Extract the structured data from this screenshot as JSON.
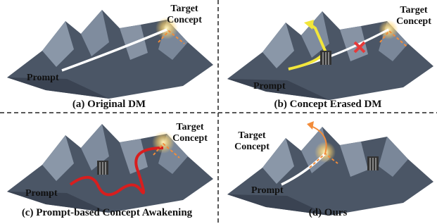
{
  "panels": [
    {
      "caption": "(a) Original DM",
      "target_label": [
        "Target",
        "Concept"
      ],
      "prompt_label": "Prompt"
    },
    {
      "caption": "(b) Concept Erased DM",
      "target_label": [
        "Target",
        "Concept"
      ],
      "prompt_label": "Prompt"
    },
    {
      "caption": "(c) Prompt-based Concept Awakening",
      "target_label": [
        "Target",
        "Concept"
      ],
      "prompt_label": "Prompt"
    },
    {
      "caption": "(d) Ours",
      "target_label": [
        "Target",
        "Concept"
      ],
      "prompt_label": "Prompt"
    }
  ]
}
